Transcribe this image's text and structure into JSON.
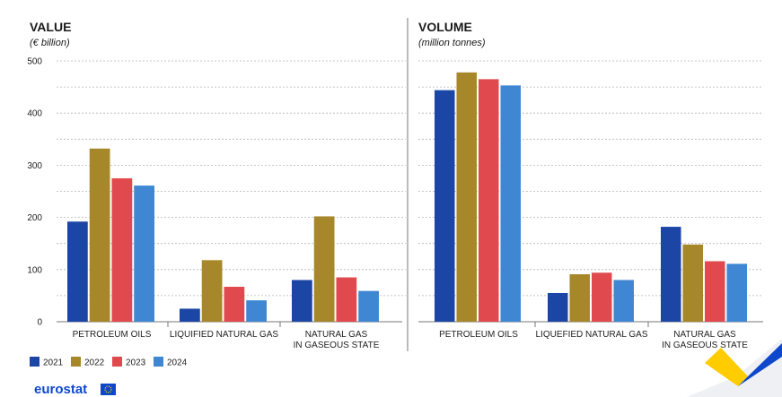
{
  "colors": {
    "2021": "#1c46a6",
    "2022": "#a6872a",
    "2023": "#e04a4f",
    "2024": "#3f86d3",
    "grid": "#b5b5b5",
    "axis": "#777777",
    "brand_blue": "#0e47cb",
    "brand_yellow": "#ffcc00"
  },
  "chart_data": [
    {
      "type": "bar",
      "title": "VALUE",
      "subtitle": "(€ billion)",
      "categories": [
        "PETROLEUM OILS",
        "LIQUIFIED NATURAL GAS",
        "NATURAL GAS IN GASEOUS STATE"
      ],
      "category_lines": [
        [
          "PETROLEUM OILS"
        ],
        [
          "LIQUIFIED NATURAL GAS"
        ],
        [
          "NATURAL GAS",
          "IN GASEOUS STATE"
        ]
      ],
      "series": [
        {
          "name": "2021",
          "values": [
            192,
            25,
            80
          ]
        },
        {
          "name": "2022",
          "values": [
            332,
            118,
            202
          ]
        },
        {
          "name": "2023",
          "values": [
            275,
            67,
            85
          ]
        },
        {
          "name": "2024",
          "values": [
            261,
            41,
            59
          ]
        }
      ],
      "ylim": [
        0,
        500
      ],
      "yticks": [
        0,
        100,
        200,
        300,
        400,
        500
      ],
      "grid": true
    },
    {
      "type": "bar",
      "title": "VOLUME",
      "subtitle": "(million tonnes)",
      "categories": [
        "PETROLEUM OILS",
        "LIQUEFIED NATURAL GAS",
        "NATURAL GAS IN GASEOUS STATE"
      ],
      "category_lines": [
        [
          "PETROLEUM OILS"
        ],
        [
          "LIQUEFIED NATURAL GAS"
        ],
        [
          "NATURAL GAS",
          "IN GASEOUS STATE"
        ]
      ],
      "series": [
        {
          "name": "2021",
          "values": [
            444,
            55,
            182
          ]
        },
        {
          "name": "2022",
          "values": [
            478,
            91,
            148
          ]
        },
        {
          "name": "2023",
          "values": [
            465,
            94,
            116
          ]
        },
        {
          "name": "2024",
          "values": [
            453,
            80,
            111
          ]
        }
      ],
      "ylim": [
        0,
        500
      ],
      "grid": true
    }
  ],
  "legend": {
    "placement": "bottom-left",
    "items": [
      "2021",
      "2022",
      "2023",
      "2024"
    ]
  },
  "branding": {
    "logo_text": "eurostat"
  }
}
